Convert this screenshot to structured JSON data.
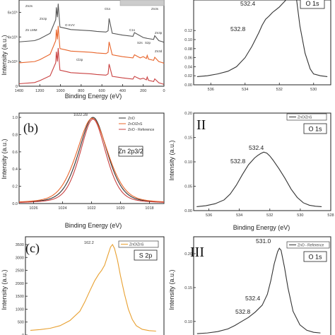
{
  "chart_data": [
    {
      "id": "a",
      "type": "line",
      "panel_label": "",
      "xlabel": "Binding Energy (eV)",
      "ylabel": "Intensity (a.u.)",
      "xlim": [
        1400,
        0
      ],
      "x_ticks": [
        1400,
        1200,
        1000,
        800,
        600,
        400,
        200,
        0
      ],
      "y_ticks_text": [
        "6x10⁵",
        "4x10⁵",
        "2x10⁵",
        "0"
      ],
      "ylim": [
        0,
        700000
      ],
      "series": [
        {
          "color": "#555555",
          "offset": 340000,
          "x": [
            1400,
            1250,
            1200,
            1100,
            1046,
            1040,
            1030,
            1022,
            1015,
            1005,
            950,
            900,
            800,
            700,
            650,
            560,
            540,
            530,
            500,
            400,
            300,
            285,
            200,
            170,
            160,
            100,
            89,
            50,
            10,
            0
          ],
          "y": [
            20000,
            30000,
            45000,
            90000,
            200000,
            300000,
            220000,
            330000,
            250000,
            140000,
            130000,
            120000,
            115000,
            110000,
            105000,
            100000,
            110000,
            210000,
            90000,
            75000,
            65000,
            95000,
            55000,
            50000,
            48000,
            40000,
            70000,
            30000,
            20000,
            15000
          ]
        },
        {
          "color": "#e8642a",
          "offset": 170000,
          "x": [
            1400,
            1250,
            1200,
            1100,
            1046,
            1040,
            1030,
            1022,
            1015,
            1005,
            950,
            900,
            800,
            700,
            650,
            560,
            540,
            530,
            500,
            400,
            300,
            285,
            230,
            200,
            170,
            162,
            150,
            100,
            89,
            50,
            10,
            0
          ],
          "y": [
            20000,
            30000,
            45000,
            90000,
            200000,
            290000,
            210000,
            320000,
            240000,
            135000,
            125000,
            115000,
            110000,
            105000,
            100000,
            95000,
            105000,
            190000,
            85000,
            70000,
            60000,
            85000,
            60000,
            70000,
            55000,
            80000,
            50000,
            40000,
            65000,
            30000,
            20000,
            15000
          ]
        },
        {
          "color": "#c94040",
          "offset": 0,
          "x": [
            1400,
            1250,
            1200,
            1100,
            1046,
            1040,
            1030,
            1022,
            1015,
            1005,
            950,
            900,
            800,
            700,
            650,
            560,
            540,
            530,
            500,
            400,
            300,
            285,
            230,
            200,
            170,
            162,
            150,
            100,
            89,
            50,
            10,
            0
          ],
          "y": [
            20000,
            30000,
            45000,
            85000,
            190000,
            280000,
            200000,
            310000,
            230000,
            130000,
            120000,
            110000,
            105000,
            100000,
            95000,
            90000,
            100000,
            180000,
            80000,
            68000,
            58000,
            80000,
            58000,
            65000,
            52000,
            75000,
            48000,
            38000,
            60000,
            28000,
            18000,
            14000
          ]
        }
      ],
      "annotations": [
        "Zn2s",
        "Zn2p",
        "O KVV",
        "Zn LMM",
        "O1s",
        "C1s",
        "Zn3s",
        "Zn3p",
        "S2s",
        "S2p",
        "Cl2p",
        "Zn3d"
      ]
    },
    {
      "id": "I",
      "type": "line",
      "panel_label": "",
      "box_label": "O 1s",
      "xlabel": "",
      "ylabel": "",
      "xlim": [
        537,
        529
      ],
      "x_ticks": [
        536,
        534,
        532,
        530
      ],
      "ylim": [
        0.0,
        0.2
      ],
      "y_ticks": [
        0.0,
        0.02,
        0.04,
        0.06,
        0.08,
        0.1,
        0.12
      ],
      "peak_labels": [
        "532.4",
        "532.8"
      ],
      "series": [
        {
          "color": "#333333",
          "x": [
            536.8,
            536.2,
            535.6,
            535.0,
            534.5,
            534.0,
            533.6,
            533.2,
            533.0,
            532.8,
            532.6,
            532.4,
            532.2,
            532.0,
            531.8,
            531.6,
            531.4,
            531.2,
            531.0,
            530.8,
            530.5,
            530.2,
            530.0,
            529.6,
            529.2
          ],
          "y": [
            0.018,
            0.02,
            0.024,
            0.03,
            0.04,
            0.06,
            0.085,
            0.115,
            0.132,
            0.145,
            0.152,
            0.16,
            0.166,
            0.172,
            0.18,
            0.188,
            0.2,
            0.205,
            0.19,
            0.13,
            0.07,
            0.035,
            0.024,
            0.02,
            0.018
          ]
        }
      ]
    },
    {
      "id": "b",
      "type": "line",
      "panel_label": "(b)",
      "box_label": "Zn 2p3/2",
      "xlabel": "Binding Energy (eV)",
      "ylabel": "Intensity (a.u.)",
      "xlim": [
        1027,
        1017
      ],
      "x_ticks": [
        1026,
        1024,
        1022,
        1020,
        1018
      ],
      "ylim": [
        0.0,
        1.05
      ],
      "y_ticks": [
        0.0,
        0.2,
        0.4,
        0.6,
        0.8,
        1.0
      ],
      "peak_labels": [
        "1022.28"
      ],
      "legend": [
        "ZnO",
        "ZnO/ZnS",
        "ZnO - Reference"
      ],
      "series": [
        {
          "name": "ZnO",
          "color": "#333333",
          "x0": 1021.9,
          "width": 1.05,
          "amp": 1.0
        },
        {
          "name": "ZnO/ZnS",
          "color": "#e8642a",
          "x0": 1021.95,
          "width": 1.15,
          "amp": 0.99
        },
        {
          "name": "ZnO - Reference",
          "color": "#c94040",
          "x0": 1021.9,
          "width": 0.95,
          "amp": 0.98
        }
      ]
    },
    {
      "id": "II",
      "type": "line",
      "panel_label": "II",
      "box_label": "O 1s",
      "xlabel": "Binding Energy (eV)",
      "ylabel": "Intensity (a.u.)",
      "xlim": [
        537,
        528
      ],
      "x_ticks": [
        536,
        534,
        532,
        530,
        528
      ],
      "ylim": [
        0.0,
        0.2
      ],
      "y_ticks": [
        0.0,
        0.05,
        0.1,
        0.15,
        0.2
      ],
      "peak_labels": [
        "532.4",
        "532.8"
      ],
      "legend": [
        "ZnO/ZnS"
      ],
      "series": [
        {
          "name": "ZnO/ZnS",
          "color": "#333333",
          "x": [
            536.8,
            536.2,
            535.6,
            535.0,
            534.6,
            534.2,
            533.8,
            533.4,
            533.0,
            532.8,
            532.6,
            532.4,
            532.2,
            532.0,
            531.8,
            531.4,
            531.0,
            530.6,
            530.2,
            529.8,
            529.4,
            529.0,
            528.6
          ],
          "y": [
            0.008,
            0.01,
            0.014,
            0.022,
            0.034,
            0.052,
            0.074,
            0.094,
            0.108,
            0.113,
            0.117,
            0.12,
            0.118,
            0.112,
            0.104,
            0.086,
            0.066,
            0.044,
            0.027,
            0.016,
            0.011,
            0.009,
            0.008
          ]
        }
      ]
    },
    {
      "id": "c",
      "type": "line",
      "panel_label": "(c)",
      "box_label": "S 2p",
      "xlabel": "",
      "ylabel": "Intensity (a.u.)",
      "xlim": [
        171,
        157
      ],
      "x_ticks": [],
      "ylim": [
        0,
        3800
      ],
      "y_ticks": [
        0,
        500,
        1000,
        1500,
        2000,
        2500,
        3000,
        3500
      ],
      "peak_labels": [
        "162.2"
      ],
      "legend": [
        "ZnO/ZnS"
      ],
      "series": [
        {
          "name": "ZnO/ZnS",
          "color": "#e8a030",
          "x": [
            170.5,
            169.5,
            168.5,
            167.5,
            166.5,
            165.5,
            165.0,
            164.5,
            164.0,
            163.6,
            163.3,
            163.0,
            162.7,
            162.4,
            162.2,
            162.0,
            161.7,
            161.4,
            161.0,
            160.6,
            160.2,
            159.8,
            159.2,
            158.5,
            157.8
          ],
          "y": [
            180,
            210,
            260,
            360,
            560,
            920,
            1280,
            1700,
            2100,
            2350,
            2500,
            2700,
            3050,
            3400,
            3500,
            3350,
            2900,
            2300,
            1600,
            1000,
            600,
            360,
            220,
            170,
            150
          ]
        }
      ]
    },
    {
      "id": "III",
      "type": "line",
      "panel_label": "III",
      "box_label": "O 1s",
      "xlabel": "",
      "ylabel": "Intensity (a.u.)",
      "xlim": [
        536,
        528
      ],
      "x_ticks": [],
      "ylim": [
        0.08,
        0.225
      ],
      "y_ticks": [
        0.1,
        0.15,
        0.2
      ],
      "peak_labels": [
        "531.0",
        "532.4",
        "532.8"
      ],
      "legend": [
        "ZnO - Reference"
      ],
      "series": [
        {
          "name": "ZnO - Reference",
          "color": "#333333",
          "x": [
            535.8,
            535.2,
            534.6,
            534.0,
            533.6,
            533.2,
            532.8,
            532.4,
            532.0,
            531.7,
            531.5,
            531.3,
            531.1,
            531.0,
            530.9,
            530.7,
            530.5,
            530.2,
            529.8,
            529.4,
            529.0,
            528.6
          ],
          "y": [
            0.082,
            0.083,
            0.085,
            0.089,
            0.094,
            0.1,
            0.106,
            0.114,
            0.124,
            0.14,
            0.16,
            0.185,
            0.203,
            0.208,
            0.205,
            0.18,
            0.15,
            0.115,
            0.095,
            0.087,
            0.084,
            0.083
          ]
        }
      ]
    }
  ]
}
